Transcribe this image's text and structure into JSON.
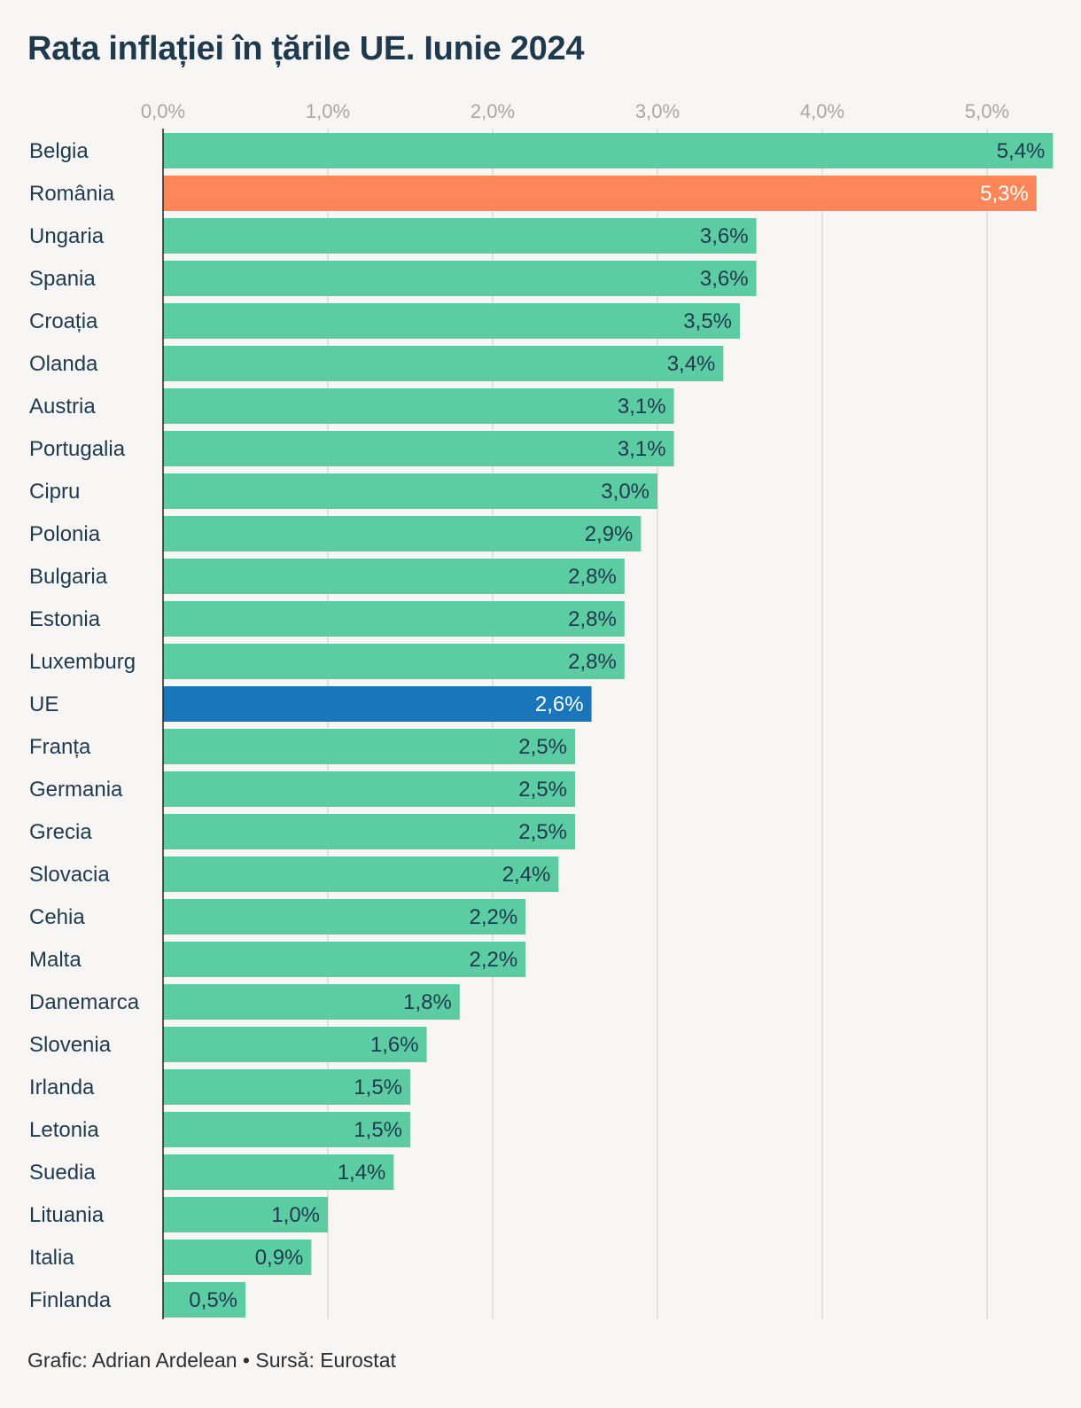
{
  "title": "Rata inflației în țările UE. Iunie 2024",
  "footer": "Grafic: Adrian Ardelean • Sursă: Eurostat",
  "colors": {
    "default": "#5ccca2",
    "highlight_romania": "#ff8658",
    "highlight_eu": "#1a76bb",
    "grid": "#dcdcdc",
    "axis": "#222222",
    "text_dark": "#1f3a4d",
    "text_light": "#ffffff"
  },
  "chart_data": {
    "type": "bar",
    "orientation": "horizontal",
    "title": "Rata inflației în țările UE. Iunie 2024",
    "xlim": [
      0,
      5.4
    ],
    "x_ticks": [
      {
        "value": 0,
        "label": "0,0%"
      },
      {
        "value": 1,
        "label": "1,0%"
      },
      {
        "value": 2,
        "label": "2,0%"
      },
      {
        "value": 3,
        "label": "3,0%"
      },
      {
        "value": 4,
        "label": "4,0%"
      },
      {
        "value": 5,
        "label": "5,0%"
      }
    ],
    "x_axis_position": "top",
    "grid": true,
    "bars": [
      {
        "category": "Belgia",
        "value": 5.4,
        "label": "5,4%"
      },
      {
        "category": "România",
        "value": 5.3,
        "label": "5,3%",
        "highlight": "highlight_romania"
      },
      {
        "category": "Ungaria",
        "value": 3.6,
        "label": "3,6%"
      },
      {
        "category": "Spania",
        "value": 3.6,
        "label": "3,6%"
      },
      {
        "category": "Croația",
        "value": 3.5,
        "label": "3,5%"
      },
      {
        "category": "Olanda",
        "value": 3.4,
        "label": "3,4%"
      },
      {
        "category": "Austria",
        "value": 3.1,
        "label": "3,1%"
      },
      {
        "category": "Portugalia",
        "value": 3.1,
        "label": "3,1%"
      },
      {
        "category": "Cipru",
        "value": 3.0,
        "label": "3,0%"
      },
      {
        "category": "Polonia",
        "value": 2.9,
        "label": "2,9%"
      },
      {
        "category": "Bulgaria",
        "value": 2.8,
        "label": "2,8%"
      },
      {
        "category": "Estonia",
        "value": 2.8,
        "label": "2,8%"
      },
      {
        "category": "Luxemburg",
        "value": 2.8,
        "label": "2,8%"
      },
      {
        "category": "UE",
        "value": 2.6,
        "label": "2,6%",
        "highlight": "highlight_eu"
      },
      {
        "category": "Franța",
        "value": 2.5,
        "label": "2,5%"
      },
      {
        "category": "Germania",
        "value": 2.5,
        "label": "2,5%"
      },
      {
        "category": "Grecia",
        "value": 2.5,
        "label": "2,5%"
      },
      {
        "category": "Slovacia",
        "value": 2.4,
        "label": "2,4%"
      },
      {
        "category": "Cehia",
        "value": 2.2,
        "label": "2,2%"
      },
      {
        "category": "Malta",
        "value": 2.2,
        "label": "2,2%"
      },
      {
        "category": "Danemarca",
        "value": 1.8,
        "label": "1,8%"
      },
      {
        "category": "Slovenia",
        "value": 1.6,
        "label": "1,6%"
      },
      {
        "category": "Irlanda",
        "value": 1.5,
        "label": "1,5%"
      },
      {
        "category": "Letonia",
        "value": 1.5,
        "label": "1,5%"
      },
      {
        "category": "Suedia",
        "value": 1.4,
        "label": "1,4%"
      },
      {
        "category": "Lituania",
        "value": 1.0,
        "label": "1,0%"
      },
      {
        "category": "Italia",
        "value": 0.9,
        "label": "0,9%"
      },
      {
        "category": "Finlanda",
        "value": 0.5,
        "label": "0,5%"
      }
    ]
  }
}
